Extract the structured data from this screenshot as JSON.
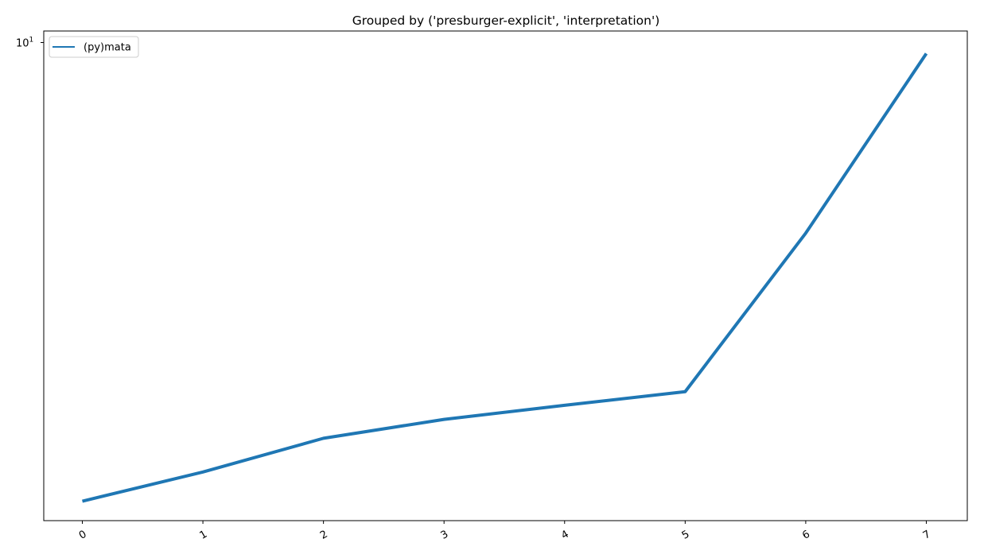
{
  "chart_data": {
    "type": "line",
    "title": "Grouped by ('presburger-explicit', 'interpretation')",
    "xlabel": "",
    "ylabel": "",
    "x": [
      0,
      1,
      2,
      3,
      4,
      5,
      6,
      7
    ],
    "x_tick_labels": [
      "0",
      "1",
      "2",
      "3",
      "4",
      "5",
      "6",
      "7"
    ],
    "y_scale": "log",
    "y_tick_labels": [
      {
        "base": "10",
        "exponent": "1"
      }
    ],
    "ylim": [
      2.93,
      10.3
    ],
    "grid": false,
    "legend_position": "top-left",
    "series": [
      {
        "name": "(py)mata",
        "color": "#1f77b4",
        "values": [
          3.08,
          3.32,
          3.62,
          3.8,
          3.94,
          4.08,
          6.13,
          9.72
        ]
      }
    ]
  }
}
